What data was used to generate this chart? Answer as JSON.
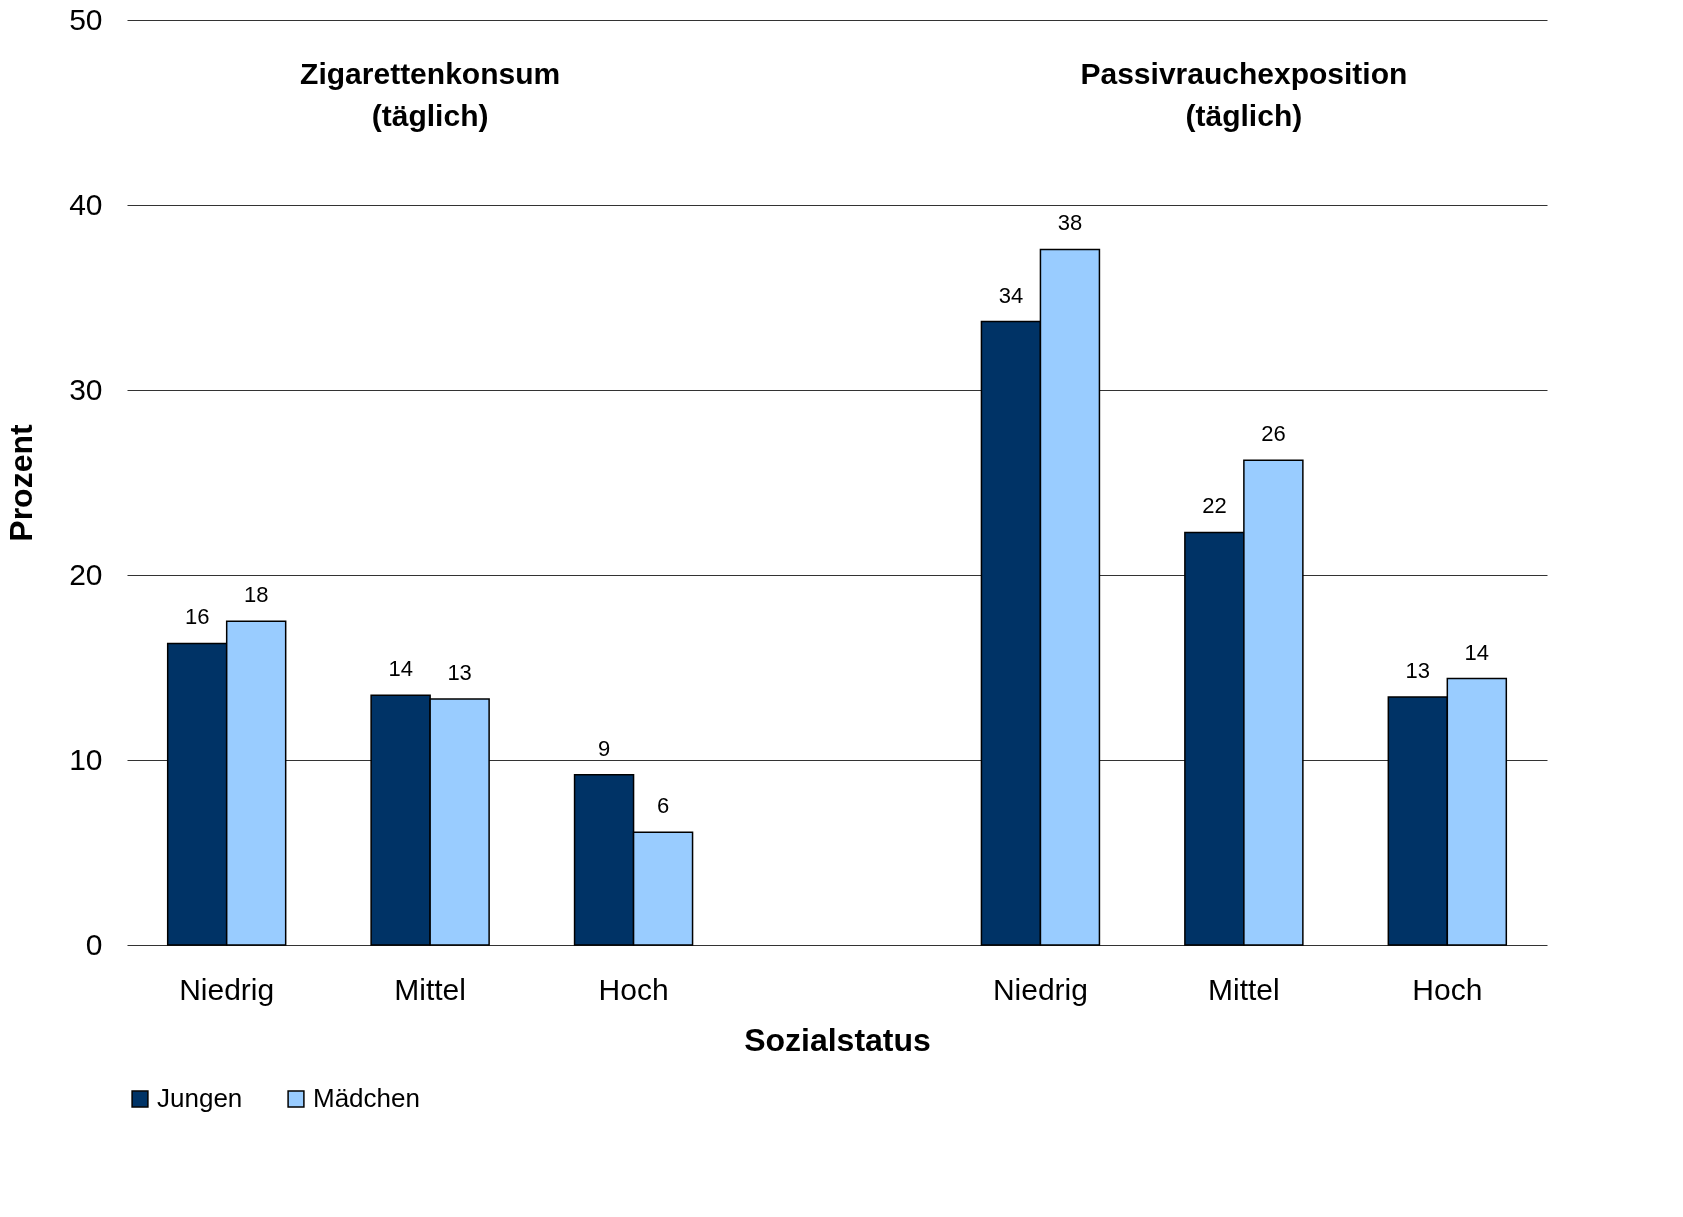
{
  "chart_data": {
    "type": "bar",
    "categories": [
      "Niedrig",
      "Mittel",
      "Hoch",
      null,
      "Niedrig",
      "Mittel",
      "Hoch"
    ],
    "series": [
      {
        "name": "Jungen",
        "color": "#003366",
        "values": [
          16.3,
          13.5,
          9.2,
          null,
          33.7,
          22.3,
          13.4
        ],
        "value_labels": [
          "16",
          "14",
          "9",
          null,
          "34",
          "22",
          "13"
        ]
      },
      {
        "name": "Mädchen",
        "color": "#99ccff",
        "values": [
          17.5,
          13.3,
          6.1,
          null,
          37.6,
          26.2,
          14.4
        ],
        "value_labels": [
          "18",
          "13",
          "6",
          null,
          "38",
          "26",
          "14"
        ]
      }
    ],
    "xlabel": "Sozialstatus",
    "ylabel": "Prozent",
    "ylim": [
      0,
      50
    ],
    "yticks": [
      0,
      10,
      20,
      30,
      40,
      50
    ],
    "grid": "y",
    "legend": "bottom left",
    "annotations": [
      "Zigarettenkonsum\n(täglich)",
      "Passivrauchexposition\n(täglich)"
    ]
  }
}
